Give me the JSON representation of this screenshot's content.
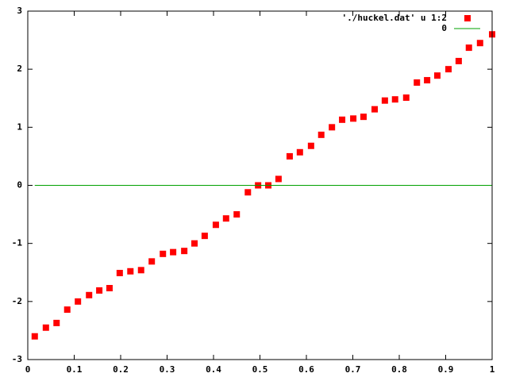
{
  "chart_data": {
    "type": "scatter",
    "xlim": [
      0,
      1
    ],
    "ylim": [
      -3,
      3
    ],
    "xticks": [
      0,
      0.1,
      0.2,
      0.3,
      0.4,
      0.5,
      0.6,
      0.7,
      0.8,
      0.9,
      1
    ],
    "yticks": [
      -3,
      -2,
      -1,
      0,
      1,
      2,
      3
    ],
    "legend": "top right",
    "series": [
      {
        "name": "'./huckel.dat' u 1:2",
        "type": "scatter",
        "color": "#ff0000",
        "x": [
          0.015,
          0.039,
          0.062,
          0.085,
          0.108,
          0.132,
          0.154,
          0.176,
          0.198,
          0.221,
          0.244,
          0.267,
          0.291,
          0.313,
          0.337,
          0.359,
          0.381,
          0.405,
          0.427,
          0.45,
          0.474,
          0.496,
          0.518,
          0.54,
          0.564,
          0.586,
          0.61,
          0.632,
          0.655,
          0.677,
          0.701,
          0.723,
          0.747,
          0.769,
          0.791,
          0.815,
          0.838,
          0.86,
          0.882,
          0.906,
          0.928,
          0.95,
          0.974,
          1
        ],
        "values": [
          -2.6,
          -2.45,
          -2.37,
          -2.14,
          -2.0,
          -1.89,
          -1.81,
          -1.77,
          -1.51,
          -1.48,
          -1.46,
          -1.31,
          -1.18,
          -1.15,
          -1.13,
          -1.0,
          -0.87,
          -0.68,
          -0.57,
          -0.5,
          -0.12,
          0,
          0,
          0.11,
          0.5,
          0.57,
          0.68,
          0.87,
          1.0,
          1.13,
          1.15,
          1.18,
          1.31,
          1.46,
          1.48,
          1.51,
          1.77,
          1.81,
          1.89,
          2.0,
          2.14,
          2.37,
          2.45,
          2.6
        ]
      },
      {
        "name": "0",
        "type": "line",
        "color": "#00a000",
        "x": [
          0.015,
          1
        ],
        "values": [
          0,
          0
        ]
      }
    ]
  }
}
